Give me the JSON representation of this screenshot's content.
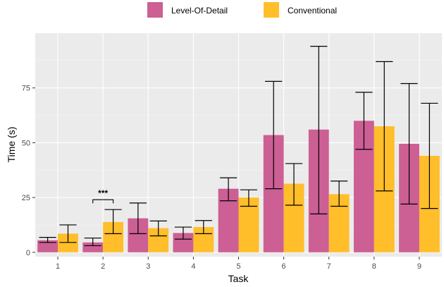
{
  "chart_data": {
    "type": "bar",
    "title": "",
    "xlabel": "Task",
    "ylabel": "Time (s)",
    "categories": [
      "1",
      "2",
      "3",
      "4",
      "5",
      "6",
      "7",
      "8",
      "9"
    ],
    "ylim": [
      -2,
      100
    ],
    "yticks": [
      0,
      25,
      50,
      75
    ],
    "grid": true,
    "legend_position": "top",
    "series": [
      {
        "name": "Level-Of-Detail",
        "color": "#cc5f93",
        "values": [
          5.5,
          4.5,
          15.5,
          8.8,
          29,
          53.5,
          56,
          60,
          49.5
        ],
        "error_low": [
          4.5,
          3,
          8.5,
          6,
          23.5,
          29,
          17.5,
          47,
          22
        ],
        "error_high": [
          6.8,
          6.5,
          22.5,
          11.5,
          34,
          78,
          94,
          73,
          77
        ]
      },
      {
        "name": "Conventional",
        "color": "#ffbe2a",
        "values": [
          8.5,
          13.8,
          11,
          11.5,
          25,
          31.3,
          26.5,
          57.5,
          44
        ],
        "error_low": [
          4.5,
          8.5,
          7.5,
          8.5,
          21,
          21.5,
          21,
          28,
          20
        ],
        "error_high": [
          12.5,
          19.5,
          14.3,
          14.5,
          28.5,
          40.5,
          32.5,
          87,
          68
        ]
      }
    ],
    "annotations": [
      {
        "text": "***",
        "category": "2",
        "y": 24
      }
    ]
  }
}
